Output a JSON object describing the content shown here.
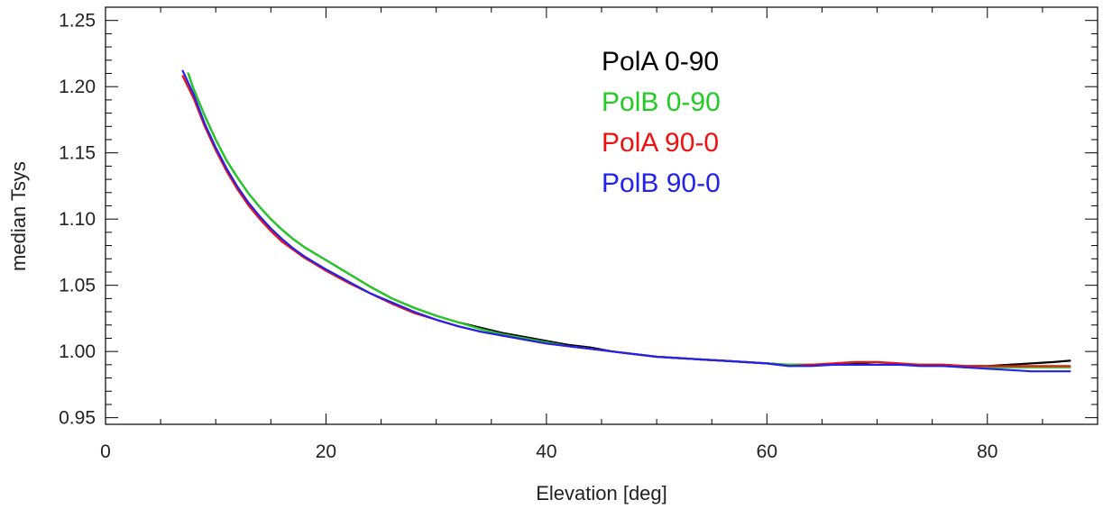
{
  "chart_data": {
    "type": "line",
    "title": "",
    "xlabel": "Elevation [deg]",
    "ylabel": "median Tsys",
    "xlim": [
      0,
      90
    ],
    "ylim": [
      0.945,
      1.26
    ],
    "xticks": [
      0,
      20,
      40,
      60,
      80
    ],
    "xtick_labels": [
      "0",
      "20",
      "40",
      "60",
      "80"
    ],
    "yticks": [
      0.95,
      1.0,
      1.05,
      1.1,
      1.15,
      1.2,
      1.25
    ],
    "ytick_labels": [
      "0.95",
      "1.00",
      "1.05",
      "1.10",
      "1.15",
      "1.20",
      "1.25"
    ],
    "grid": false,
    "legend_position": "top-center",
    "series": [
      {
        "name": "PolA 0-90",
        "color": "#000000",
        "x": [
          7.5,
          8,
          9,
          10,
          11,
          12,
          13,
          14,
          15,
          16,
          17,
          18,
          19,
          20,
          22,
          24,
          26,
          28,
          30,
          32,
          34,
          36,
          38,
          40,
          42,
          44,
          46,
          48,
          50,
          52,
          54,
          56,
          58,
          60,
          62,
          64,
          66,
          68,
          70,
          72,
          74,
          76,
          78,
          80,
          82,
          84,
          86,
          87.5
        ],
        "y": [
          1.21,
          1.198,
          1.178,
          1.16,
          1.144,
          1.131,
          1.119,
          1.109,
          1.1,
          1.092,
          1.085,
          1.079,
          1.074,
          1.069,
          1.059,
          1.049,
          1.04,
          1.033,
          1.027,
          1.022,
          1.018,
          1.014,
          1.011,
          1.008,
          1.005,
          1.003,
          1.0,
          0.998,
          0.996,
          0.995,
          0.994,
          0.993,
          0.992,
          0.991,
          0.99,
          0.99,
          0.99,
          0.991,
          0.99,
          0.99,
          0.99,
          0.99,
          0.989,
          0.989,
          0.99,
          0.991,
          0.992,
          0.993
        ]
      },
      {
        "name": "PolB 0-90",
        "color": "#22cc22",
        "x": [
          7.5,
          8,
          9,
          10,
          11,
          12,
          13,
          14,
          15,
          16,
          17,
          18,
          19,
          20,
          22,
          24,
          26,
          28,
          30,
          32,
          34,
          36,
          38,
          40,
          42,
          44,
          46,
          48,
          50,
          52,
          54,
          56,
          58,
          60,
          62,
          64,
          66,
          68,
          70,
          72,
          74,
          76,
          78,
          80,
          82,
          84,
          86,
          87.5
        ],
        "y": [
          1.21,
          1.198,
          1.178,
          1.16,
          1.144,
          1.131,
          1.119,
          1.109,
          1.1,
          1.092,
          1.085,
          1.079,
          1.074,
          1.069,
          1.059,
          1.049,
          1.04,
          1.033,
          1.027,
          1.022,
          1.017,
          1.013,
          1.01,
          1.007,
          1.004,
          1.002,
          1.0,
          0.998,
          0.996,
          0.995,
          0.994,
          0.993,
          0.992,
          0.991,
          0.99,
          0.99,
          0.99,
          0.99,
          0.99,
          0.99,
          0.99,
          0.989,
          0.988,
          0.988,
          0.988,
          0.988,
          0.988,
          0.988
        ]
      },
      {
        "name": "PolA 90-0",
        "color": "#ee1111",
        "x": [
          7,
          8,
          9,
          10,
          11,
          12,
          13,
          14,
          15,
          16,
          17,
          18,
          19,
          20,
          22,
          24,
          26,
          28,
          30,
          32,
          34,
          36,
          38,
          40,
          42,
          44,
          46,
          48,
          50,
          52,
          54,
          56,
          58,
          60,
          61,
          62,
          64,
          66,
          68,
          70,
          72,
          74,
          76,
          78,
          80,
          82,
          84,
          86,
          87.5
        ],
        "y": [
          1.208,
          1.191,
          1.17,
          1.152,
          1.136,
          1.122,
          1.11,
          1.1,
          1.091,
          1.083,
          1.077,
          1.071,
          1.066,
          1.061,
          1.052,
          1.044,
          1.036,
          1.029,
          1.024,
          1.019,
          1.015,
          1.012,
          1.009,
          1.006,
          1.004,
          1.002,
          1.0,
          0.998,
          0.996,
          0.995,
          0.994,
          0.993,
          0.992,
          0.991,
          0.99,
          0.989,
          0.99,
          0.991,
          0.992,
          0.992,
          0.991,
          0.99,
          0.99,
          0.989,
          0.989,
          0.989,
          0.989,
          0.989,
          0.989
        ]
      },
      {
        "name": "PolB 90-0",
        "color": "#2222ee",
        "x": [
          7,
          8,
          9,
          10,
          11,
          12,
          13,
          14,
          15,
          16,
          17,
          18,
          19,
          20,
          22,
          24,
          26,
          28,
          30,
          32,
          34,
          36,
          38,
          40,
          42,
          44,
          46,
          48,
          50,
          52,
          54,
          56,
          58,
          60,
          61,
          62,
          64,
          66,
          68,
          70,
          72,
          74,
          76,
          78,
          80,
          82,
          84,
          86,
          87.5
        ],
        "y": [
          1.212,
          1.194,
          1.172,
          1.154,
          1.138,
          1.124,
          1.112,
          1.102,
          1.093,
          1.085,
          1.078,
          1.072,
          1.067,
          1.062,
          1.053,
          1.044,
          1.037,
          1.03,
          1.024,
          1.019,
          1.015,
          1.012,
          1.009,
          1.006,
          1.004,
          1.002,
          1.0,
          0.998,
          0.996,
          0.995,
          0.994,
          0.993,
          0.992,
          0.991,
          0.99,
          0.989,
          0.989,
          0.99,
          0.99,
          0.99,
          0.99,
          0.989,
          0.989,
          0.988,
          0.987,
          0.986,
          0.985,
          0.985,
          0.985
        ]
      }
    ]
  }
}
